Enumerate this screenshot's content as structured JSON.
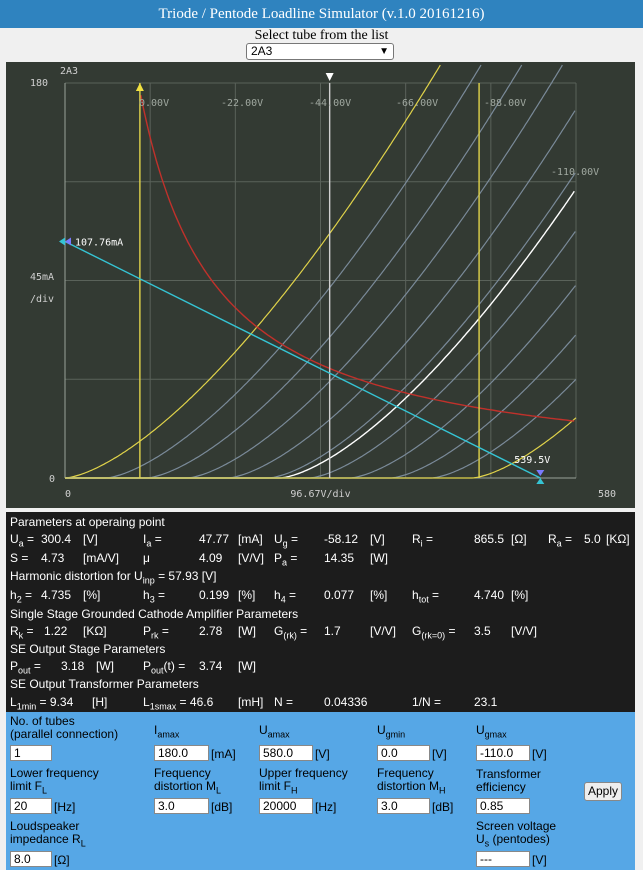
{
  "header": {
    "title": "Triode / Pentode Loadline Simulator (v.1.0 20161216)"
  },
  "selector": {
    "label": "Select tube from the list",
    "selected": "2A3"
  },
  "chart_data": {
    "type": "line",
    "tube_label": "2A3",
    "ylabel": "45mA",
    "ylabel_unit": "/div",
    "xlabel": "96.67V/div",
    "y_max_label": "180",
    "y_zero_label": "0",
    "x_zero_label": "0",
    "x_max_label": "580",
    "xlim": [
      0,
      580
    ],
    "ylim": [
      0,
      180
    ],
    "grid": true,
    "grid_divisions": {
      "x": 6,
      "y": 4
    },
    "curve_labels": [
      "0.00V",
      "-22.00V",
      "-44.00V",
      "-66.00V",
      "-88.00V",
      "-110.00V"
    ],
    "grid_curves": [
      {
        "ug": 0,
        "color": "#e0d34a"
      },
      {
        "ug": -11,
        "color": "#7a8a99"
      },
      {
        "ug": -22,
        "color": "#7a8a99"
      },
      {
        "ug": -33,
        "color": "#7a8a99"
      },
      {
        "ug": -44,
        "color": "#7a8a99"
      },
      {
        "ug": -55,
        "color": "#7a8a99"
      },
      {
        "ug": -58.12,
        "color": "#ffffff"
      },
      {
        "ug": -66,
        "color": "#7a8a99"
      },
      {
        "ug": -77,
        "color": "#7a8a99"
      },
      {
        "ug": -88,
        "color": "#7a8a99"
      },
      {
        "ug": -99,
        "color": "#7a8a99"
      },
      {
        "ug": -110,
        "color": "#e0d34a"
      }
    ],
    "load_line": {
      "ia0": 107.76,
      "ua0": 539.5,
      "ia0_label": "107.76mA",
      "ua0_label": "539.5V",
      "color": "#35c4d4"
    },
    "power_limit_W": 15,
    "power_curve_color": "#c0312b",
    "vertical_lines": [
      {
        "ua": 85,
        "color": "#e0d34a"
      },
      {
        "ua": 300.4,
        "color": "#d0d0d0"
      },
      {
        "ua": 470,
        "color": "#e0d34a"
      }
    ],
    "operating_point": {
      "ua": 300.4,
      "ia": 47.77
    },
    "background": "#333a33",
    "grid_color": "#5a625a"
  },
  "params": {
    "section1": "Parameters at operaing point",
    "ua_label": "U",
    "ua_sub": "a",
    "ua_val": "300.4",
    "ua_unit": "[V]",
    "ia_label": "I",
    "ia_sub": "a",
    "ia_val": "47.77",
    "ia_unit": "[mA]",
    "ug_label": "U",
    "ug_sub": "g",
    "ug_val": "-58.12",
    "ug_unit": "[V]",
    "ri_label": "R",
    "ri_sub": "i",
    "ri_val": "865.5",
    "ri_unit": "[Ω]",
    "ra_label": "R",
    "ra_sub": "a",
    "ra_val": "5.0",
    "ra_unit": "[KΩ]",
    "s_label": "S =",
    "s_val": "4.73",
    "s_unit": "[mA/V]",
    "mu_label": "μ",
    "mu_val": "4.09",
    "mu_unit": "[V/V]",
    "pa_label": "P",
    "pa_sub": "a",
    "pa_val": "14.35",
    "pa_unit": "[W]",
    "section2_pre": "Harmonic distortion for U",
    "section2_sub": "inp",
    "section2_post": "= 57.93 [V]",
    "h2_label": "h",
    "h2_sub": "2",
    "h2_val": "4.735",
    "h2_unit": "[%]",
    "h3_label": "h",
    "h3_sub": "3",
    "h3_val": "0.199",
    "h3_unit": "[%]",
    "h4_label": "h",
    "h4_sub": "4",
    "h4_val": "0.077",
    "h4_unit": "[%]",
    "htot_label": "h",
    "htot_sub": "tot",
    "htot_val": "4.740",
    "htot_unit": "[%]",
    "section3": "Single Stage Grounded Cathode Amplifier Parameters",
    "rk_label": "R",
    "rk_sub": "k",
    "rk_val": "1.22",
    "rk_unit": "[KΩ]",
    "prk_label": "P",
    "prk_sub": "rk",
    "prk_val": "2.78",
    "prk_unit": "[W]",
    "grk_label": "G",
    "grk_sub": "(rk)",
    "grk_val": "1.7",
    "grk_unit": "[V/V]",
    "grk0_label": "G",
    "grk0_sub": "(rk=0)",
    "grk0_val": "3.5",
    "grk0_unit": "[V/V]",
    "section4": "SE Output Stage Parameters",
    "pout_label": "P",
    "pout_sub": "out",
    "pout_val": "3.18",
    "pout_unit": "[W]",
    "poutt_label": "P",
    "poutt_sub": "out",
    "poutt_post": "(t) =",
    "poutt_val": "3.74",
    "poutt_unit": "[W]",
    "section5": "SE Output Transformer Parameters",
    "l1min_label": "L",
    "l1min_sub": "1min",
    "l1min_val": "= 9.34",
    "l1min_unit": "[H]",
    "l1smax_label": "L",
    "l1smax_sub": "1smax",
    "l1smax_val": "= 46.6",
    "l1smax_unit": "[mH]",
    "n_label": "N =",
    "n_val": "0.04336",
    "inv_n_label": "1/N =",
    "inv_n_val": "23.1"
  },
  "inputs": {
    "tubes_label1": "No. of tubes",
    "tubes_label2": "(parallel connection)",
    "tubes_val": "1",
    "iamax_label": "I",
    "iamax_sub": "amax",
    "iamax_val": "180.0",
    "iamax_unit": "[mA]",
    "uamax_label": "U",
    "uamax_sub": "amax",
    "uamax_val": "580.0",
    "uamax_unit": "[V]",
    "ugmin_label": "U",
    "ugmin_sub": "gmin",
    "ugmin_val": "0.0",
    "ugmin_unit": "[V]",
    "ugmax_label": "U",
    "ugmax_sub": "gmax",
    "ugmax_val": "-110.0",
    "ugmax_unit": "[V]",
    "flow_label1": "Lower frequency",
    "flow_label2": "limit F",
    "flow_sub": "L",
    "flow_val": "20",
    "flow_unit": "[Hz]",
    "ml_label1": "Frequency",
    "ml_label2": "distortion M",
    "ml_sub": "L",
    "ml_val": "3.0",
    "ml_unit": "[dB]",
    "fh_label1": "Upper frequency",
    "fh_label2": "limit F",
    "fh_sub": "H",
    "fh_val": "20000",
    "fh_unit": "[Hz]",
    "mh_label1": "Frequency",
    "mh_label2": "distortion M",
    "mh_sub": "H",
    "mh_val": "3.0",
    "mh_unit": "[dB]",
    "eff_label1": "Transformer",
    "eff_label2": "efficiency",
    "eff_val": "0.85",
    "apply_label": "Apply",
    "rl_label1": "Loudspeaker",
    "rl_label2": "impedance R",
    "rl_sub": "L",
    "rl_val": "8.0",
    "rl_unit": "[Ω]",
    "us_label1": "Screen voltage",
    "us_label2": "U",
    "us_sub": "s",
    "us_post": " (pentodes)",
    "us_val": "---",
    "us_unit": "[V]"
  }
}
